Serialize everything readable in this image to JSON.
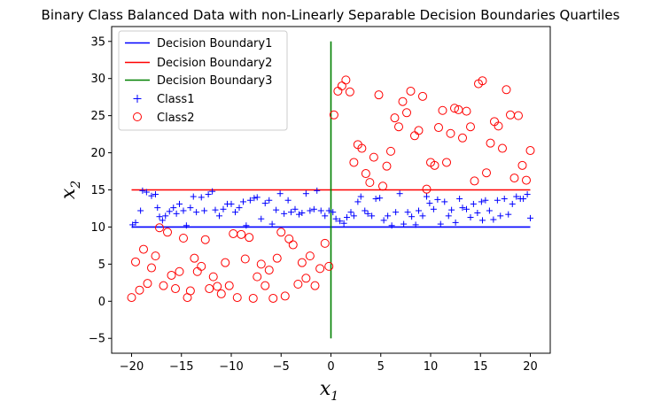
{
  "chart_data": {
    "type": "scatter",
    "title": "Binary Class Balanced Data with non-Linearly Separable Decision Boundaries Quartiles",
    "xlabel": {
      "main": "x",
      "sub": "1"
    },
    "ylabel": {
      "main": "x",
      "sub": "2"
    },
    "xlim": [
      -22,
      22
    ],
    "ylim": [
      -7,
      37
    ],
    "xticks": [
      -20,
      -15,
      -10,
      -5,
      0,
      5,
      10,
      15,
      20
    ],
    "yticks": [
      -5,
      0,
      5,
      10,
      15,
      20,
      25,
      30,
      35
    ],
    "grid": false,
    "legend_position": "top-left",
    "lines": [
      {
        "name": "Decision Boundary1",
        "color": "#0000ff",
        "x": [
          -20,
          20
        ],
        "y": [
          10,
          10
        ]
      },
      {
        "name": "Decision Boundary2",
        "color": "#ff0000",
        "x": [
          -20,
          20
        ],
        "y": [
          15,
          15
        ]
      },
      {
        "name": "Decision Boundary3",
        "color": "#008000",
        "x": [
          0,
          0
        ],
        "y": [
          -5,
          35
        ]
      }
    ],
    "series": [
      {
        "name": "Class1",
        "marker": "plus",
        "color": "#0000ff",
        "points": [
          [
            -19.9,
            10.3
          ],
          [
            -19.6,
            10.6
          ],
          [
            -19.1,
            12.2
          ],
          [
            -18.9,
            14.9
          ],
          [
            -18.5,
            14.7
          ],
          [
            -18.0,
            14.2
          ],
          [
            -17.6,
            14.4
          ],
          [
            -17.4,
            12.6
          ],
          [
            -17.2,
            11.4
          ],
          [
            -16.9,
            10.9
          ],
          [
            -16.6,
            11.5
          ],
          [
            -16.2,
            12.1
          ],
          [
            -15.8,
            12.6
          ],
          [
            -15.5,
            11.8
          ],
          [
            -15.2,
            13.1
          ],
          [
            -14.8,
            12.2
          ],
          [
            -14.5,
            10.2
          ],
          [
            -14.1,
            12.6
          ],
          [
            -13.8,
            14.1
          ],
          [
            -13.5,
            12.0
          ],
          [
            -13.0,
            14.0
          ],
          [
            -12.7,
            12.2
          ],
          [
            -12.3,
            14.4
          ],
          [
            -11.9,
            14.8
          ],
          [
            -11.6,
            12.3
          ],
          [
            -11.2,
            11.5
          ],
          [
            -10.8,
            12.4
          ],
          [
            -10.4,
            13.1
          ],
          [
            -10.0,
            13.1
          ],
          [
            -9.6,
            12.0
          ],
          [
            -9.2,
            12.6
          ],
          [
            -8.8,
            13.4
          ],
          [
            -8.5,
            10.2
          ],
          [
            -8.1,
            13.6
          ],
          [
            -7.7,
            13.9
          ],
          [
            -7.4,
            14.0
          ],
          [
            -7.0,
            11.1
          ],
          [
            -6.6,
            13.2
          ],
          [
            -6.2,
            13.6
          ],
          [
            -5.9,
            10.4
          ],
          [
            -5.5,
            12.3
          ],
          [
            -5.1,
            14.5
          ],
          [
            -4.7,
            11.8
          ],
          [
            -4.3,
            13.6
          ],
          [
            -4.0,
            12.0
          ],
          [
            -3.6,
            12.4
          ],
          [
            -3.2,
            11.7
          ],
          [
            -2.9,
            11.9
          ],
          [
            -2.5,
            14.5
          ],
          [
            -2.1,
            12.2
          ],
          [
            -1.7,
            12.4
          ],
          [
            -1.4,
            14.9
          ],
          [
            -1.0,
            12.2
          ],
          [
            -0.6,
            11.5
          ],
          [
            -0.2,
            12.2
          ],
          [
            0.2,
            12.0
          ],
          [
            0.5,
            11.1
          ],
          [
            0.9,
            10.8
          ],
          [
            1.3,
            10.5
          ],
          [
            1.6,
            11.3
          ],
          [
            2.0,
            12.0
          ],
          [
            2.3,
            11.5
          ],
          [
            2.7,
            13.4
          ],
          [
            3.0,
            14.1
          ],
          [
            3.4,
            12.2
          ],
          [
            3.7,
            11.8
          ],
          [
            4.1,
            11.5
          ],
          [
            4.5,
            13.8
          ],
          [
            4.9,
            13.9
          ],
          [
            5.3,
            10.9
          ],
          [
            5.7,
            11.5
          ],
          [
            6.1,
            10.2
          ],
          [
            6.5,
            12.0
          ],
          [
            6.9,
            14.5
          ],
          [
            7.3,
            10.4
          ],
          [
            7.7,
            12.0
          ],
          [
            8.1,
            11.4
          ],
          [
            8.5,
            10.3
          ],
          [
            8.8,
            12.2
          ],
          [
            9.2,
            11.5
          ],
          [
            9.6,
            14.1
          ],
          [
            9.9,
            13.2
          ],
          [
            10.3,
            12.4
          ],
          [
            10.7,
            13.7
          ],
          [
            11.0,
            10.4
          ],
          [
            11.4,
            13.4
          ],
          [
            11.8,
            11.5
          ],
          [
            12.1,
            12.3
          ],
          [
            12.5,
            10.6
          ],
          [
            12.9,
            13.8
          ],
          [
            13.2,
            12.6
          ],
          [
            13.6,
            12.4
          ],
          [
            14.0,
            11.3
          ],
          [
            14.3,
            13.1
          ],
          [
            14.7,
            11.9
          ],
          [
            15.1,
            13.4
          ],
          [
            15.5,
            13.6
          ],
          [
            15.9,
            12.2
          ],
          [
            16.3,
            11.0
          ],
          [
            16.7,
            13.6
          ],
          [
            17.0,
            11.5
          ],
          [
            17.4,
            13.8
          ],
          [
            17.8,
            11.7
          ],
          [
            18.2,
            13.1
          ],
          [
            18.6,
            14.1
          ],
          [
            19.0,
            13.8
          ],
          [
            19.3,
            13.8
          ],
          [
            19.7,
            14.4
          ],
          [
            20.0,
            11.2
          ],
          [
            15.2,
            10.9
          ]
        ]
      },
      {
        "name": "Class2",
        "marker": "circle",
        "color": "#ff0000",
        "points": [
          [
            -20.0,
            0.5
          ],
          [
            -19.6,
            5.3
          ],
          [
            -19.2,
            1.5
          ],
          [
            -18.8,
            7.0
          ],
          [
            -18.4,
            2.4
          ],
          [
            -18.0,
            4.5
          ],
          [
            -17.6,
            6.1
          ],
          [
            -17.2,
            9.9
          ],
          [
            -16.8,
            2.1
          ],
          [
            -16.4,
            9.3
          ],
          [
            -16.0,
            3.5
          ],
          [
            -15.6,
            1.7
          ],
          [
            -15.2,
            4.0
          ],
          [
            -14.8,
            8.5
          ],
          [
            -14.4,
            0.5
          ],
          [
            -14.1,
            1.4
          ],
          [
            -13.7,
            5.8
          ],
          [
            -13.4,
            4.0
          ],
          [
            -13.0,
            4.7
          ],
          [
            -12.6,
            8.3
          ],
          [
            -12.2,
            1.7
          ],
          [
            -11.8,
            3.3
          ],
          [
            -11.4,
            2.0
          ],
          [
            -11.0,
            1.0
          ],
          [
            -10.6,
            5.2
          ],
          [
            -10.2,
            2.1
          ],
          [
            -9.8,
            9.1
          ],
          [
            -9.4,
            0.5
          ],
          [
            -9.0,
            9.0
          ],
          [
            -8.6,
            5.7
          ],
          [
            -8.2,
            8.6
          ],
          [
            -7.8,
            0.4
          ],
          [
            -7.4,
            3.3
          ],
          [
            -7.0,
            5.0
          ],
          [
            -6.6,
            2.1
          ],
          [
            -6.2,
            4.2
          ],
          [
            -5.8,
            0.4
          ],
          [
            -5.4,
            5.8
          ],
          [
            -5.0,
            9.3
          ],
          [
            -4.6,
            0.7
          ],
          [
            -4.2,
            8.4
          ],
          [
            -3.8,
            7.6
          ],
          [
            -3.3,
            2.3
          ],
          [
            -2.9,
            5.2
          ],
          [
            -2.5,
            3.1
          ],
          [
            -2.1,
            6.1
          ],
          [
            -1.6,
            2.1
          ],
          [
            -1.1,
            4.4
          ],
          [
            -0.6,
            7.8
          ],
          [
            -0.2,
            4.7
          ],
          [
            0.3,
            25.1
          ],
          [
            0.7,
            28.3
          ],
          [
            1.1,
            29.0
          ],
          [
            1.5,
            29.8
          ],
          [
            1.9,
            28.2
          ],
          [
            2.3,
            18.7
          ],
          [
            2.7,
            21.1
          ],
          [
            3.1,
            20.6
          ],
          [
            3.5,
            17.2
          ],
          [
            3.9,
            16.0
          ],
          [
            4.3,
            19.4
          ],
          [
            4.8,
            27.8
          ],
          [
            5.2,
            15.5
          ],
          [
            5.6,
            18.2
          ],
          [
            6.0,
            20.2
          ],
          [
            6.4,
            24.7
          ],
          [
            6.8,
            23.5
          ],
          [
            7.2,
            26.9
          ],
          [
            7.6,
            25.4
          ],
          [
            8.0,
            28.3
          ],
          [
            8.4,
            22.3
          ],
          [
            8.8,
            23.0
          ],
          [
            9.2,
            27.6
          ],
          [
            9.6,
            15.1
          ],
          [
            10.0,
            18.7
          ],
          [
            10.4,
            18.3
          ],
          [
            10.8,
            23.4
          ],
          [
            11.2,
            25.7
          ],
          [
            11.6,
            18.7
          ],
          [
            12.0,
            22.6
          ],
          [
            12.4,
            26.0
          ],
          [
            12.8,
            25.8
          ],
          [
            13.2,
            22.0
          ],
          [
            13.6,
            25.6
          ],
          [
            14.0,
            23.5
          ],
          [
            14.4,
            16.2
          ],
          [
            14.8,
            29.3
          ],
          [
            15.2,
            29.7
          ],
          [
            15.6,
            17.3
          ],
          [
            16.0,
            21.3
          ],
          [
            16.4,
            24.2
          ],
          [
            16.8,
            23.6
          ],
          [
            17.2,
            20.6
          ],
          [
            17.6,
            28.5
          ],
          [
            18.0,
            25.1
          ],
          [
            18.4,
            16.6
          ],
          [
            18.8,
            25.0
          ],
          [
            19.2,
            18.3
          ],
          [
            19.6,
            16.3
          ],
          [
            20.0,
            20.3
          ]
        ]
      }
    ]
  }
}
